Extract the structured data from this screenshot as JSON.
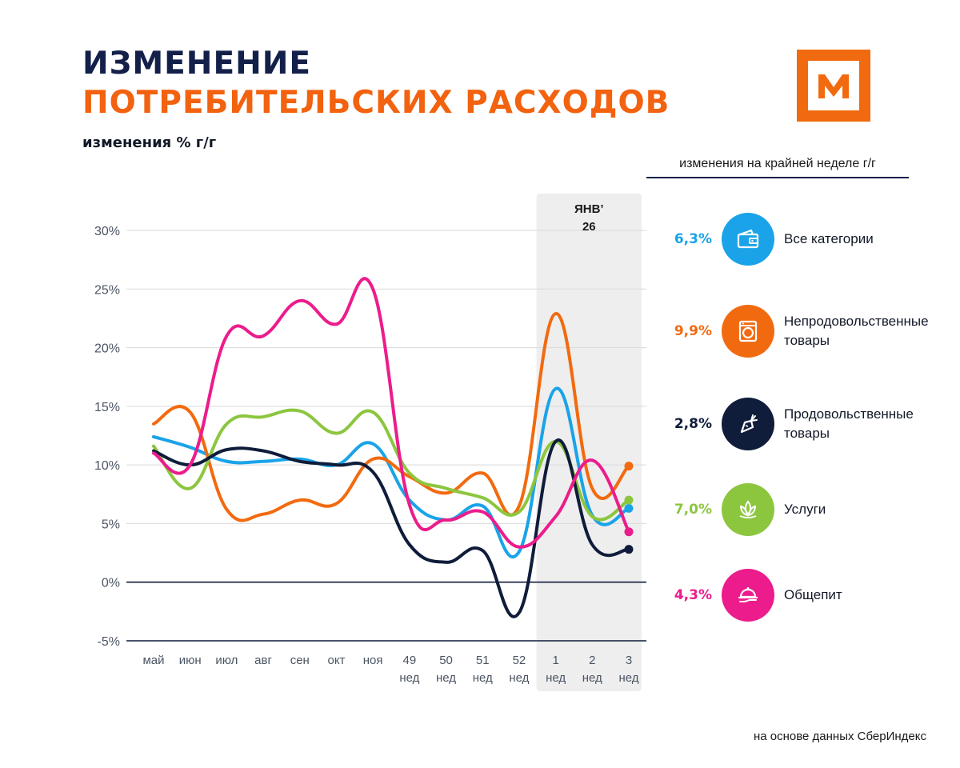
{
  "title": {
    "line1": "ИЗМЕНЕНИЕ",
    "line2": "ПОТРЕБИТЕЛЬСКИХ РАСХОДОВ"
  },
  "subtitle": "изменения % г/г",
  "logo": {
    "letter": "M",
    "color": "#f26a0f"
  },
  "legend": {
    "header": "изменения на крайней неделе г/г",
    "items": [
      {
        "value": "6,3%",
        "label": "Все категории",
        "color": "#1aa3e8",
        "icon": "wallet-icon"
      },
      {
        "value": "9,9%",
        "label": "Непродовольственные\nтовары",
        "color": "#f26a0f",
        "icon": "washing-machine-icon"
      },
      {
        "value": "2,8%",
        "label": "Продовольственные\nтовары",
        "color": "#0f1c3a",
        "icon": "carrot-icon"
      },
      {
        "value": "7,0%",
        "label": "Услуги",
        "color": "#8cc63f",
        "icon": "lotus-icon"
      },
      {
        "value": "4,3%",
        "label": "Общепит",
        "color": "#ec1c8c",
        "icon": "food-tray-icon"
      }
    ]
  },
  "source": "на основе данных СберИндекс",
  "chart_data": {
    "type": "line",
    "categories": [
      [
        "май"
      ],
      [
        "июн"
      ],
      [
        "июл"
      ],
      [
        "авг"
      ],
      [
        "сен"
      ],
      [
        "окт"
      ],
      [
        "ноя"
      ],
      [
        "49",
        "нед"
      ],
      [
        "50",
        "нед"
      ],
      [
        "51",
        "нед"
      ],
      [
        "52",
        "нед"
      ],
      [
        "1",
        "нед"
      ],
      [
        "2",
        "нед"
      ],
      [
        "3",
        "нед"
      ]
    ],
    "y_ticks": [
      "30%",
      "25%",
      "20%",
      "15%",
      "10%",
      "5%",
      "0%",
      "-5%"
    ],
    "ylim": [
      -5,
      30
    ],
    "highlight": {
      "label_line1": "ЯНВ’",
      "label_line2": "26",
      "from_index": 11,
      "to_index": 13
    },
    "series": [
      {
        "name": "Все категории",
        "color": "#1aa3e8",
        "values": [
          12.4,
          11.5,
          10.3,
          10.3,
          10.5,
          10.0,
          11.8,
          7.0,
          5.3,
          6.5,
          2.6,
          16.5,
          5.7,
          6.3
        ]
      },
      {
        "name": "Непродовольственные товары",
        "color": "#f26a0f",
        "values": [
          13.5,
          14.5,
          6.2,
          5.8,
          7.0,
          6.7,
          10.5,
          9.0,
          7.6,
          9.3,
          6.5,
          22.9,
          8.0,
          9.9
        ]
      },
      {
        "name": "Продовольственные товары",
        "color": "#0f1c3a",
        "values": [
          11.2,
          10.0,
          11.3,
          11.2,
          10.3,
          10.0,
          9.4,
          3.2,
          1.7,
          2.7,
          -2.6,
          12.0,
          3.2,
          2.8
        ]
      },
      {
        "name": "Услуги",
        "color": "#8cc63f",
        "values": [
          11.6,
          8.0,
          13.5,
          14.1,
          14.6,
          12.7,
          14.5,
          9.3,
          8.0,
          7.2,
          6.0,
          12.0,
          5.6,
          7.0
        ]
      },
      {
        "name": "Общепит",
        "color": "#ec1c8c",
        "values": [
          11.0,
          10.0,
          21.0,
          21.0,
          24.0,
          22.0,
          25.0,
          6.6,
          5.3,
          6.0,
          3.0,
          5.6,
          10.4,
          4.3
        ]
      }
    ]
  }
}
